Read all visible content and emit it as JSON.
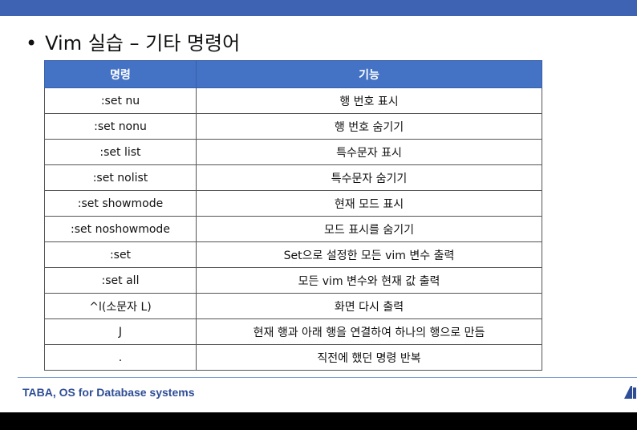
{
  "slide": {
    "heading_bullet": "•",
    "heading": "Vim 실습 – 기타 명령어",
    "footer": "TABA, OS for Database systems"
  },
  "table": {
    "headers": [
      "명령",
      "기능"
    ],
    "rows": [
      [
        ":set nu",
        "행 번호 표시"
      ],
      [
        ":set nonu",
        "행 번호 숨기기"
      ],
      [
        ":set list",
        "특수문자 표시"
      ],
      [
        ":set nolist",
        "특수문자 숨기기"
      ],
      [
        ":set showmode",
        "현재 모드 표시"
      ],
      [
        ":set noshowmode",
        "모드 표시를 숨기기"
      ],
      [
        ":set",
        "Set으로 설정한 모든 vim 변수 출력"
      ],
      [
        ":set all",
        "모든 vim 변수와 현재 값 출력"
      ],
      [
        "^l(소문자 L)",
        "화면 다시 출력"
      ],
      [
        "J",
        "현재 행과 아래 행을 연결하여 하나의 행으로 만듬"
      ],
      [
        ".",
        "직전에 했던 명령 반복"
      ]
    ]
  },
  "colors": {
    "banner": "#3f63b3",
    "table_header": "#4472c4",
    "footer_text": "#2f4e96"
  },
  "icons": [
    "logo-icon"
  ]
}
